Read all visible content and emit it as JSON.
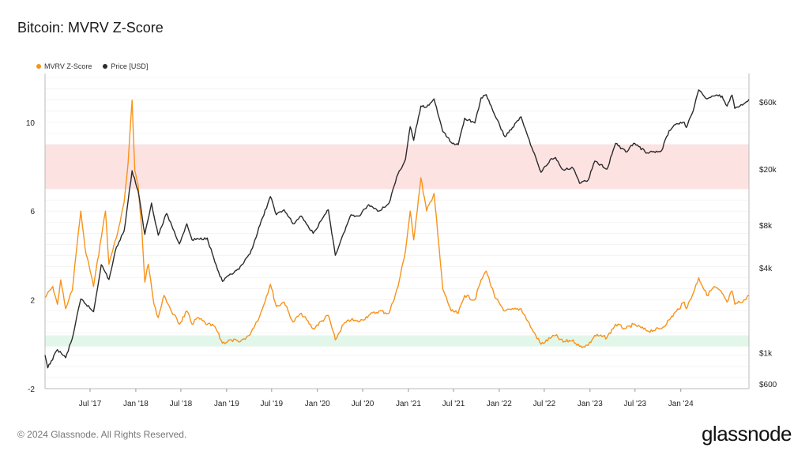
{
  "page": {
    "title": "Bitcoin: MVRV Z-Score",
    "footer": "© 2024 Glassnode. All Rights Reserved.",
    "brand": "glassnode"
  },
  "colors": {
    "mvrv": "#f7931a",
    "price": "#2b2b2b",
    "red_band": "#fde2e2",
    "green_band": "#e3f6ea",
    "grid": "#eeeeee"
  },
  "chart_data": {
    "type": "line",
    "legend": [
      {
        "name": "MVRV Z-Score",
        "color": "#f7931a"
      },
      {
        "name": "Price [USD]",
        "color": "#2b2b2b"
      }
    ],
    "legend_placement": "top-left",
    "x_range": [
      "2017-01-01",
      "2024-10-01"
    ],
    "x_ticks": [
      "Jul '17",
      "Jan '18",
      "Jul '18",
      "Jan '19",
      "Jul '19",
      "Jan '20",
      "Jul '20",
      "Jan '21",
      "Jul '21",
      "Jan '22",
      "Jul '22",
      "Jan '23",
      "Jul '23",
      "Jan '24"
    ],
    "x_tick_dates": [
      "2017-07-01",
      "2018-01-01",
      "2018-07-01",
      "2019-01-01",
      "2019-07-01",
      "2020-01-01",
      "2020-07-01",
      "2021-01-01",
      "2021-07-01",
      "2022-01-01",
      "2022-07-01",
      "2023-01-01",
      "2023-07-01",
      "2024-01-01"
    ],
    "y_left": {
      "ticks": [
        10,
        6,
        2,
        -2
      ],
      "tick_labels": [
        "10",
        "6",
        "2",
        "-2"
      ],
      "range": [
        -2,
        12.2
      ]
    },
    "y_right": {
      "scale": "log",
      "ticks": [
        60000,
        20000,
        8000,
        4000,
        1000,
        600
      ],
      "tick_labels": [
        "$60k",
        "$20k",
        "$8k",
        "$4k",
        "$1k",
        "$600"
      ],
      "range": [
        600,
        60000
      ]
    },
    "bands": [
      {
        "name": "red",
        "from": 7.0,
        "to": 9.0
      },
      {
        "name": "green",
        "from": -0.1,
        "to": 0.4
      }
    ],
    "series": [
      {
        "name": "MVRV Z-Score",
        "axis": "left",
        "points": [
          [
            "2017-01-01",
            2.1
          ],
          [
            "2017-02-01",
            2.6
          ],
          [
            "2017-02-20",
            1.8
          ],
          [
            "2017-03-05",
            2.9
          ],
          [
            "2017-03-25",
            1.6
          ],
          [
            "2017-04-20",
            2.4
          ],
          [
            "2017-05-10",
            4.5
          ],
          [
            "2017-05-25",
            6.0
          ],
          [
            "2017-06-10",
            4.4
          ],
          [
            "2017-07-15",
            2.6
          ],
          [
            "2017-08-15",
            4.8
          ],
          [
            "2017-09-01",
            6.0
          ],
          [
            "2017-09-15",
            3.6
          ],
          [
            "2017-10-15",
            4.8
          ],
          [
            "2017-11-15",
            6.4
          ],
          [
            "2017-12-01",
            8.2
          ],
          [
            "2017-12-17",
            11.0
          ],
          [
            "2017-12-28",
            7.8
          ],
          [
            "2018-01-10",
            7.2
          ],
          [
            "2018-01-25",
            5.2
          ],
          [
            "2018-02-06",
            2.8
          ],
          [
            "2018-02-20",
            3.6
          ],
          [
            "2018-03-15",
            1.8
          ],
          [
            "2018-04-01",
            1.2
          ],
          [
            "2018-04-25",
            2.2
          ],
          [
            "2018-05-20",
            1.6
          ],
          [
            "2018-06-25",
            0.9
          ],
          [
            "2018-07-25",
            1.5
          ],
          [
            "2018-08-15",
            0.9
          ],
          [
            "2018-09-05",
            1.2
          ],
          [
            "2018-10-15",
            0.9
          ],
          [
            "2018-11-15",
            0.8
          ],
          [
            "2018-12-15",
            0.05
          ],
          [
            "2019-01-20",
            0.2
          ],
          [
            "2019-02-20",
            0.1
          ],
          [
            "2019-04-01",
            0.4
          ],
          [
            "2019-05-15",
            1.3
          ],
          [
            "2019-06-26",
            2.7
          ],
          [
            "2019-07-20",
            1.7
          ],
          [
            "2019-08-20",
            1.9
          ],
          [
            "2019-09-25",
            1.0
          ],
          [
            "2019-10-28",
            1.4
          ],
          [
            "2019-12-15",
            0.7
          ],
          [
            "2020-02-14",
            1.3
          ],
          [
            "2020-03-13",
            0.2
          ],
          [
            "2020-04-15",
            0.9
          ],
          [
            "2020-05-15",
            1.1
          ],
          [
            "2020-06-15",
            1.0
          ],
          [
            "2020-07-25",
            1.3
          ],
          [
            "2020-09-05",
            1.5
          ],
          [
            "2020-10-15",
            1.4
          ],
          [
            "2020-11-20",
            2.6
          ],
          [
            "2020-12-20",
            4.2
          ],
          [
            "2021-01-08",
            6.0
          ],
          [
            "2021-01-22",
            4.7
          ],
          [
            "2021-02-20",
            7.5
          ],
          [
            "2021-03-15",
            6.0
          ],
          [
            "2021-04-14",
            6.8
          ],
          [
            "2021-05-19",
            2.5
          ],
          [
            "2021-06-22",
            1.5
          ],
          [
            "2021-07-20",
            1.4
          ],
          [
            "2021-08-15",
            2.2
          ],
          [
            "2021-09-25",
            2.0
          ],
          [
            "2021-10-20",
            2.9
          ],
          [
            "2021-11-10",
            3.3
          ],
          [
            "2021-12-15",
            2.1
          ],
          [
            "2022-01-24",
            1.5
          ],
          [
            "2022-03-30",
            1.6
          ],
          [
            "2022-05-12",
            0.7
          ],
          [
            "2022-06-18",
            0.0
          ],
          [
            "2022-07-30",
            0.3
          ],
          [
            "2022-08-15",
            0.4
          ],
          [
            "2022-09-15",
            0.1
          ],
          [
            "2022-10-25",
            0.2
          ],
          [
            "2022-11-20",
            -0.1
          ],
          [
            "2022-12-25",
            -0.05
          ],
          [
            "2023-01-20",
            0.4
          ],
          [
            "2023-03-10",
            0.3
          ],
          [
            "2023-04-14",
            0.9
          ],
          [
            "2023-05-25",
            0.7
          ],
          [
            "2023-06-25",
            0.9
          ],
          [
            "2023-08-20",
            0.6
          ],
          [
            "2023-10-15",
            0.7
          ],
          [
            "2023-11-15",
            1.1
          ],
          [
            "2023-12-15",
            1.5
          ],
          [
            "2024-01-15",
            1.9
          ],
          [
            "2024-01-23",
            1.6
          ],
          [
            "2024-02-20",
            2.3
          ],
          [
            "2024-03-13",
            3.0
          ],
          [
            "2024-04-15",
            2.2
          ],
          [
            "2024-05-15",
            2.6
          ],
          [
            "2024-06-15",
            2.3
          ],
          [
            "2024-07-05",
            1.9
          ],
          [
            "2024-07-25",
            2.4
          ],
          [
            "2024-08-05",
            1.8
          ],
          [
            "2024-09-15",
            2.0
          ],
          [
            "2024-10-01",
            2.2
          ]
        ]
      },
      {
        "name": "Price [USD]",
        "axis": "right",
        "points": [
          [
            "2017-01-01",
            960
          ],
          [
            "2017-01-12",
            780
          ],
          [
            "2017-02-20",
            1050
          ],
          [
            "2017-03-25",
            920
          ],
          [
            "2017-04-20",
            1250
          ],
          [
            "2017-05-25",
            2400
          ],
          [
            "2017-07-15",
            1950
          ],
          [
            "2017-08-15",
            4200
          ],
          [
            "2017-09-15",
            3300
          ],
          [
            "2017-10-15",
            5600
          ],
          [
            "2017-11-15",
            7300
          ],
          [
            "2017-12-17",
            19500
          ],
          [
            "2018-01-10",
            14000
          ],
          [
            "2018-02-06",
            6900
          ],
          [
            "2018-03-05",
            11500
          ],
          [
            "2018-04-01",
            6800
          ],
          [
            "2018-05-05",
            9700
          ],
          [
            "2018-06-25",
            5900
          ],
          [
            "2018-07-25",
            8200
          ],
          [
            "2018-08-15",
            6300
          ],
          [
            "2018-10-15",
            6500
          ],
          [
            "2018-11-25",
            3900
          ],
          [
            "2018-12-15",
            3200
          ],
          [
            "2019-01-20",
            3600
          ],
          [
            "2019-02-20",
            3900
          ],
          [
            "2019-04-05",
            5000
          ],
          [
            "2019-05-15",
            8000
          ],
          [
            "2019-06-26",
            12800
          ],
          [
            "2019-07-20",
            9500
          ],
          [
            "2019-08-20",
            10300
          ],
          [
            "2019-09-25",
            8200
          ],
          [
            "2019-10-28",
            9300
          ],
          [
            "2019-12-15",
            7000
          ],
          [
            "2020-02-14",
            10300
          ],
          [
            "2020-03-13",
            4900
          ],
          [
            "2020-04-15",
            7000
          ],
          [
            "2020-05-15",
            9500
          ],
          [
            "2020-06-15",
            9300
          ],
          [
            "2020-07-25",
            11200
          ],
          [
            "2020-09-05",
            10100
          ],
          [
            "2020-10-15",
            11500
          ],
          [
            "2020-11-20",
            18500
          ],
          [
            "2020-12-20",
            23500
          ],
          [
            "2021-01-08",
            40000
          ],
          [
            "2021-01-22",
            32000
          ],
          [
            "2021-02-20",
            56000
          ],
          [
            "2021-03-15",
            55000
          ],
          [
            "2021-04-14",
            63000
          ],
          [
            "2021-05-19",
            37000
          ],
          [
            "2021-06-22",
            31000
          ],
          [
            "2021-07-20",
            29800
          ],
          [
            "2021-08-15",
            46000
          ],
          [
            "2021-09-25",
            42500
          ],
          [
            "2021-10-20",
            64000
          ],
          [
            "2021-11-10",
            67500
          ],
          [
            "2021-12-15",
            48000
          ],
          [
            "2022-01-24",
            34000
          ],
          [
            "2022-03-30",
            47000
          ],
          [
            "2022-05-12",
            28500
          ],
          [
            "2022-06-18",
            19000
          ],
          [
            "2022-07-30",
            23800
          ],
          [
            "2022-08-15",
            24200
          ],
          [
            "2022-09-15",
            19800
          ],
          [
            "2022-10-25",
            20300
          ],
          [
            "2022-11-20",
            15900
          ],
          [
            "2022-12-25",
            16800
          ],
          [
            "2023-01-20",
            22800
          ],
          [
            "2023-03-10",
            20000
          ],
          [
            "2023-04-14",
            30500
          ],
          [
            "2023-05-25",
            26500
          ],
          [
            "2023-06-25",
            30500
          ],
          [
            "2023-08-20",
            26100
          ],
          [
            "2023-10-15",
            27000
          ],
          [
            "2023-11-15",
            37500
          ],
          [
            "2023-12-15",
            42000
          ],
          [
            "2024-01-15",
            43000
          ],
          [
            "2024-01-23",
            39500
          ],
          [
            "2024-02-20",
            52000
          ],
          [
            "2024-03-13",
            73000
          ],
          [
            "2024-04-15",
            63000
          ],
          [
            "2024-05-15",
            66000
          ],
          [
            "2024-06-15",
            66000
          ],
          [
            "2024-07-05",
            56000
          ],
          [
            "2024-07-25",
            67000
          ],
          [
            "2024-08-05",
            54000
          ],
          [
            "2024-09-15",
            59000
          ],
          [
            "2024-10-01",
            62500
          ]
        ]
      }
    ]
  }
}
